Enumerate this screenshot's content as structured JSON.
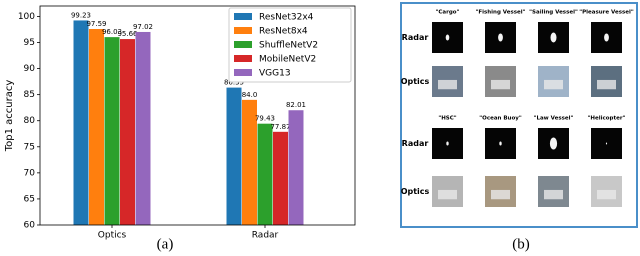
{
  "chart_data": {
    "type": "bar",
    "ylabel": "Top1 accuracy",
    "caption": "(a)",
    "categories": [
      "Optics",
      "Radar"
    ],
    "series": [
      {
        "name": "ResNet32x4",
        "color": "#1f77b4",
        "values": [
          99.23,
          86.35
        ],
        "value_labels": [
          "99.23",
          "86.35"
        ]
      },
      {
        "name": "ResNet8x4",
        "color": "#ff7f0e",
        "values": [
          97.59,
          84.0
        ],
        "value_labels": [
          "97.59",
          "84.0"
        ]
      },
      {
        "name": "ShuffleNetV2",
        "color": "#2ca02c",
        "values": [
          96.03,
          79.43
        ],
        "value_labels": [
          "96.03",
          "79.43"
        ]
      },
      {
        "name": "MobileNetV2",
        "color": "#d62728",
        "values": [
          95.66,
          77.87
        ],
        "value_labels": [
          "95.66",
          "77.87"
        ]
      },
      {
        "name": "VGG13",
        "color": "#9467bd",
        "values": [
          97.02,
          82.01
        ],
        "value_labels": [
          "97.02",
          "82.01"
        ]
      }
    ],
    "ylim": [
      60,
      102
    ],
    "yticks": [
      60,
      65,
      70,
      75,
      80,
      85,
      90,
      95,
      100
    ],
    "legend": "upper right"
  },
  "panel_b": {
    "caption": "(b)",
    "row_labels": [
      "Radar",
      "Optics"
    ],
    "groups": [
      {
        "names": [
          "\"Cargo\"",
          "\"Fishing Vessel\"",
          "\"Sailing Vessel\"",
          "\"Pleasure Vessel\""
        ]
      },
      {
        "names": [
          "\"HSC\"",
          "\"Ocean Buoy\"",
          "\"Law Vessel\"",
          "\"Helicopter\""
        ]
      }
    ]
  }
}
